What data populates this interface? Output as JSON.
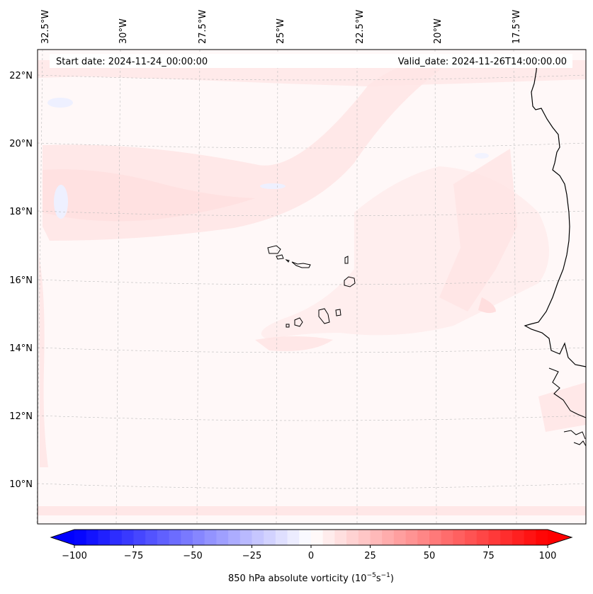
{
  "map": {
    "start_date": "Start date: 2024-11-24_00:00:00",
    "valid_date": "Valid_date: 2024-11-26T14:00:00.00",
    "lon_labels": [
      "32.5°W",
      "30°W",
      "27.5°W",
      "25°W",
      "22.5°W",
      "20°W",
      "17.5°W"
    ],
    "lat_labels": [
      "22°N",
      "20°N",
      "18°N",
      "16°N",
      "14°N",
      "12°N",
      "10°N"
    ],
    "extent": {
      "lon_min": -33.0,
      "lon_max": -15.0,
      "lat_min": 9.0,
      "lat_max": 22.8
    },
    "coastline_color": "#000000",
    "gridlines": true,
    "field_max_color": "#ffe6e6"
  },
  "colorbar": {
    "label_prefix": "850 hPa absolute vorticity (10",
    "label_exp1": "−5",
    "label_mid": "s",
    "label_exp2": "−1",
    "label_suffix": ")",
    "ticks": [
      "−100",
      "−75",
      "−50",
      "−25",
      "0",
      "25",
      "50",
      "75",
      "100"
    ],
    "min": -100,
    "max": 100,
    "step": 5,
    "low_color": "#0000ff",
    "high_color": "#ff0000",
    "extend": "both"
  }
}
